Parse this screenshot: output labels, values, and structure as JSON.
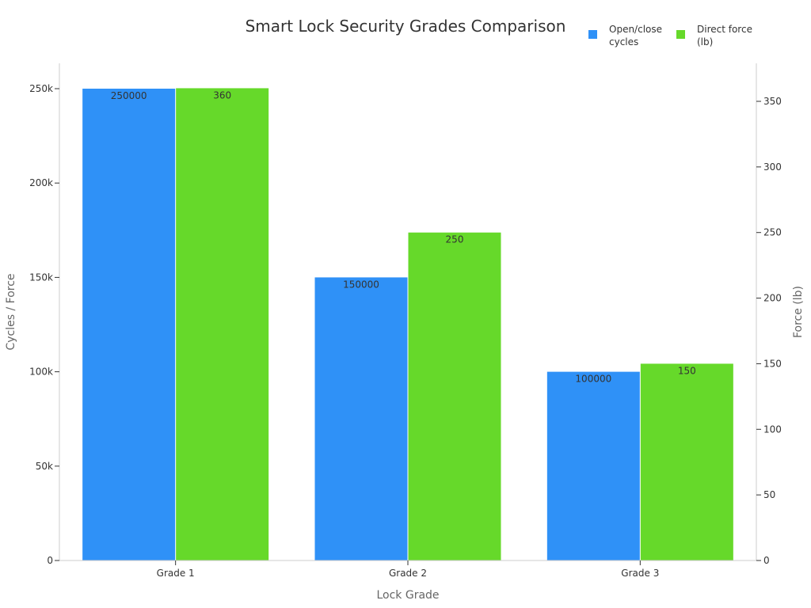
{
  "chart_data": {
    "type": "bar",
    "title": "Smart Lock Security Grades Comparison",
    "xlabel": "Lock Grade",
    "ylabel": "Cycles / Force",
    "y2label": "Force (lb)",
    "categories": [
      "Grade 1",
      "Grade 2",
      "Grade 3"
    ],
    "series": [
      {
        "name": "Open/close cycles",
        "legend_lines": [
          "Open/close",
          "cycles"
        ],
        "values": [
          250000,
          150000,
          100000
        ],
        "axis": "left",
        "color": "#2f91f7"
      },
      {
        "name": "Direct force (lb)",
        "legend_lines": [
          "Direct force",
          "(lb)"
        ],
        "values": [
          360,
          250,
          150
        ],
        "axis": "right",
        "color": "#66d92a"
      }
    ],
    "ylim": [
      0,
      250000
    ],
    "y2lim": [
      0,
      360
    ],
    "yticks": [
      {
        "value": 0,
        "label": "0"
      },
      {
        "value": 50000,
        "label": "50k"
      },
      {
        "value": 100000,
        "label": "100k"
      },
      {
        "value": 150000,
        "label": "150k"
      },
      {
        "value": 200000,
        "label": "200k"
      },
      {
        "value": 250000,
        "label": "250k"
      }
    ],
    "y2ticks": [
      {
        "value": 0,
        "label": "0"
      },
      {
        "value": 50,
        "label": "50"
      },
      {
        "value": 100,
        "label": "100"
      },
      {
        "value": 150,
        "label": "150"
      },
      {
        "value": 200,
        "label": "200"
      },
      {
        "value": 250,
        "label": "250"
      },
      {
        "value": 300,
        "label": "300"
      },
      {
        "value": 350,
        "label": "350"
      }
    ],
    "grid": false,
    "legend_position": "top-right",
    "axis_color": "#cccccc"
  }
}
